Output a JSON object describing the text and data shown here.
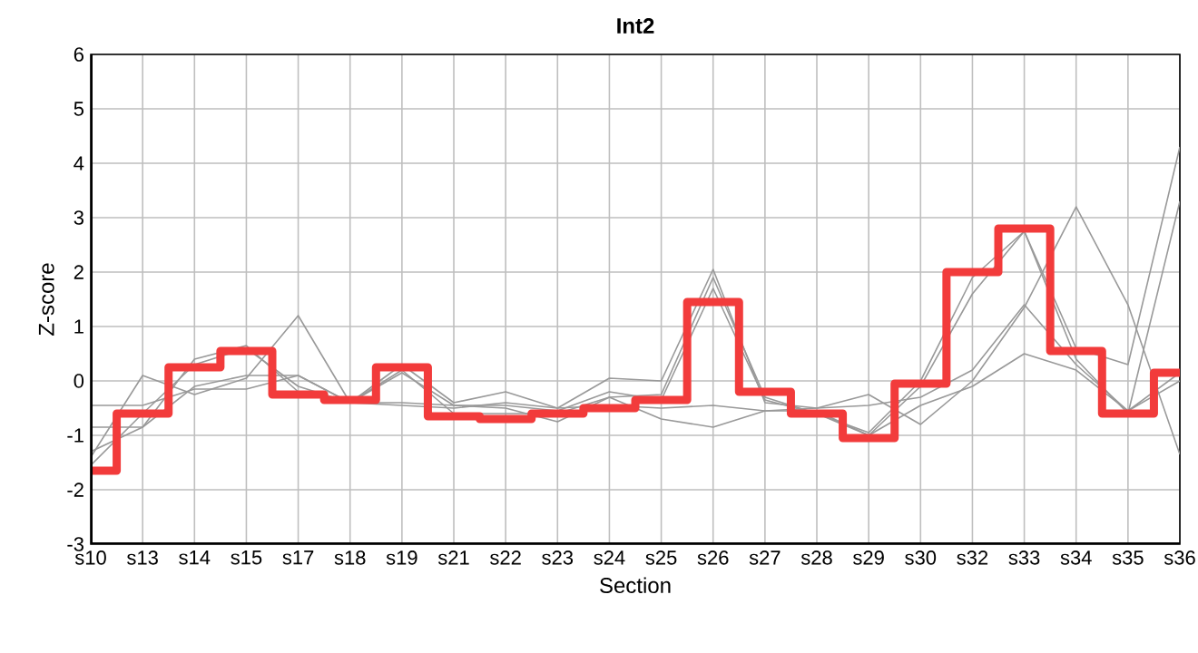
{
  "chart_data": {
    "type": "line",
    "title": "Int2",
    "xlabel": "Section",
    "ylabel": "Z-score",
    "categories": [
      "s10",
      "s13",
      "s14",
      "s15",
      "s17",
      "s18",
      "s19",
      "s21",
      "s22",
      "s23",
      "s24",
      "s25",
      "s26",
      "s27",
      "s28",
      "s29",
      "s30",
      "s32",
      "s33",
      "s34",
      "s35",
      "s36"
    ],
    "ylim": [
      -3,
      6
    ],
    "yticks": [
      -3,
      -2,
      -1,
      0,
      1,
      2,
      3,
      4,
      5,
      6
    ],
    "grid": true,
    "marker": "none",
    "series": [
      {
        "type": "line",
        "color": "#999999",
        "values": [
          -1.4,
          0.1,
          -0.25,
          0.05,
          1.2,
          -0.4,
          0.3,
          -0.4,
          -0.2,
          -0.5,
          0.05,
          0.0,
          2.05,
          -0.4,
          -0.5,
          -0.25,
          -0.8,
          0.0,
          1.35,
          3.2,
          1.4,
          -1.35
        ]
      },
      {
        "type": "line",
        "color": "#999999",
        "values": [
          -1.55,
          -0.6,
          0.3,
          0.6,
          -0.1,
          -0.4,
          0.2,
          -0.6,
          -0.6,
          -0.6,
          -0.3,
          -0.25,
          1.9,
          -0.3,
          -0.6,
          -1.0,
          -0.1,
          1.6,
          2.75,
          0.6,
          0.3,
          4.3
        ]
      },
      {
        "type": "line",
        "color": "#999999",
        "values": [
          -1.3,
          -0.85,
          0.4,
          0.65,
          -0.2,
          -0.4,
          0.15,
          -0.45,
          -0.45,
          -0.55,
          -0.2,
          -0.35,
          1.7,
          -0.35,
          -0.6,
          -0.95,
          0.0,
          1.9,
          2.75,
          0.4,
          -0.6,
          3.3
        ]
      },
      {
        "type": "line",
        "color": "#999999",
        "values": [
          -0.45,
          -0.45,
          -0.15,
          -0.15,
          0.1,
          -0.4,
          -0.45,
          -0.5,
          -0.4,
          -0.5,
          -0.45,
          -0.5,
          -0.45,
          -0.55,
          -0.5,
          -0.45,
          -0.3,
          0.2,
          1.4,
          0.3,
          -0.55,
          0.0
        ]
      },
      {
        "type": "line",
        "color": "#999999",
        "values": [
          -0.85,
          -0.85,
          -0.1,
          0.1,
          0.1,
          -0.4,
          -0.4,
          -0.45,
          -0.5,
          -0.75,
          -0.3,
          -0.7,
          -0.85,
          -0.55,
          -0.55,
          -1.0,
          -0.45,
          -0.1,
          0.5,
          0.2,
          -0.55,
          0.15
        ]
      },
      {
        "type": "step",
        "color": "#f23b3b",
        "values": [
          -1.65,
          -0.6,
          0.25,
          0.55,
          -0.25,
          -0.35,
          0.25,
          -0.65,
          -0.7,
          -0.6,
          -0.5,
          -0.35,
          1.45,
          -0.2,
          -0.6,
          -1.05,
          -0.05,
          2.0,
          2.8,
          0.55,
          -0.6,
          0.15
        ]
      }
    ]
  }
}
